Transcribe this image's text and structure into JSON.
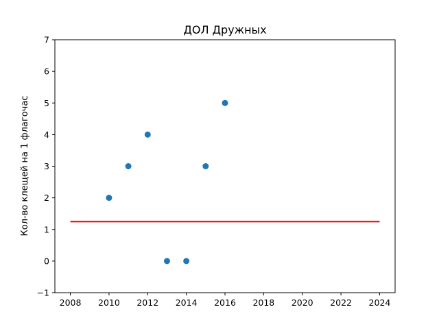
{
  "chart_data": {
    "type": "scatter",
    "title": "ДОЛ Дружных",
    "xlabel": "",
    "ylabel": "Кол-во клещей на 1 флагочас",
    "xlim": [
      2007.2,
      2024.8
    ],
    "ylim": [
      -1,
      7
    ],
    "x_ticks": [
      2008,
      2010,
      2012,
      2014,
      2016,
      2018,
      2020,
      2022,
      2024
    ],
    "y_ticks": [
      -1,
      0,
      1,
      2,
      3,
      4,
      5,
      6,
      7
    ],
    "grid": false,
    "series": [
      {
        "kind": "scatter",
        "color": "#1f77b4",
        "x": [
          2010,
          2011,
          2012,
          2013,
          2014,
          2015,
          2016
        ],
        "y": [
          2,
          3,
          4,
          0,
          0,
          3,
          5
        ]
      },
      {
        "kind": "line",
        "color": "#e41a1c",
        "x": [
          2008,
          2024
        ],
        "y": [
          1.25,
          1.25
        ]
      }
    ]
  }
}
